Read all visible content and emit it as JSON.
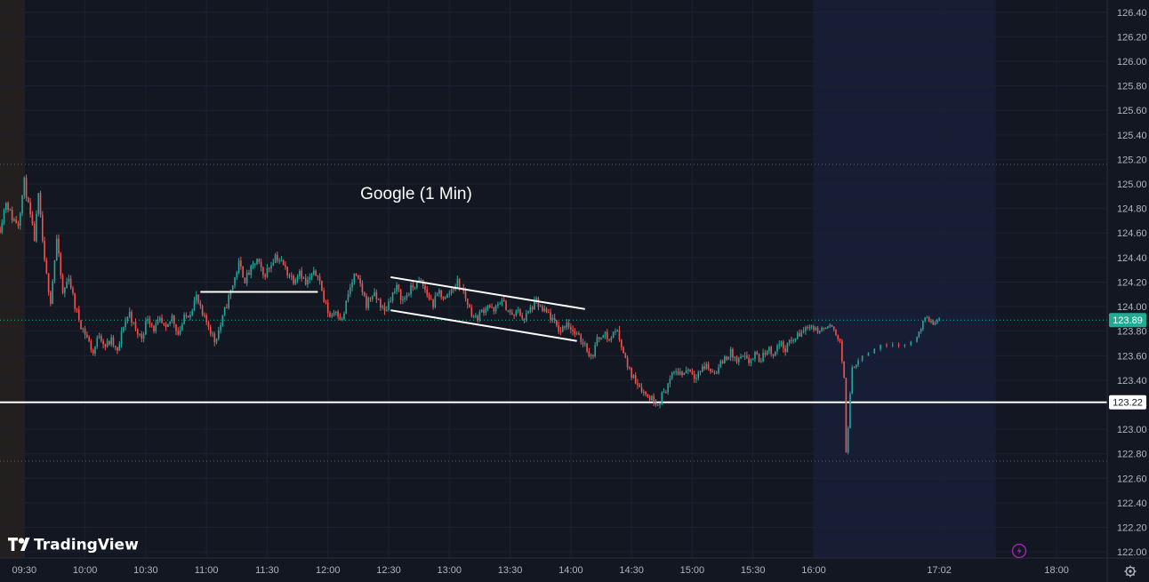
{
  "brand": {
    "name": "TradingView",
    "logo_icon": "tradingview-logo-icon"
  },
  "colors": {
    "background": "#131722",
    "premarket_shade": "#221f1e",
    "afterhours_shade": "#161d34",
    "up": "#26a69a",
    "down": "#ef5350",
    "grid": "#1c2030",
    "axis_text": "#b2b5be",
    "price_badge": "#22ab94",
    "annotation": "#ffffff"
  },
  "scale_settings_icon": "gear-icon",
  "lightning_icon": "lightning-icon",
  "chart_data": {
    "type": "candlestick",
    "title": "Google (1 Min)",
    "y_ticks": [
      "126.40",
      "126.20",
      "126.00",
      "125.80",
      "125.60",
      "125.40",
      "125.20",
      "125.00",
      "124.80",
      "124.60",
      "124.40",
      "124.20",
      "124.00",
      "123.80",
      "123.60",
      "123.40",
      "123.20",
      "123.00",
      "122.80",
      "122.60",
      "122.40",
      "122.20",
      "122.00"
    ],
    "x_ticks": [
      "09:30",
      "10:00",
      "10:30",
      "11:00",
      "11:30",
      "12:00",
      "12:30",
      "13:00",
      "13:30",
      "14:00",
      "14:30",
      "15:00",
      "15:30",
      "16:00",
      "17:02",
      "18:00"
    ],
    "ylim": [
      121.95,
      126.5
    ],
    "x_range": [
      "09:18",
      "18:25"
    ],
    "sessions": {
      "premarket": [
        "09:18",
        "09:30"
      ],
      "afterhours": [
        "16:00",
        "17:30"
      ]
    },
    "current_price": "123.89",
    "horizontal_line_level": "123.22",
    "dotted_levels": [
      125.16,
      122.74
    ],
    "annotations": {
      "resistance_line": {
        "from": [
          "10:57",
          124.12
        ],
        "to": [
          "11:55",
          124.12
        ]
      },
      "channel_upper": {
        "from": [
          "12:31",
          124.24
        ],
        "to": [
          "14:07",
          123.98
        ]
      },
      "channel_lower": {
        "from": [
          "12:31",
          123.97
        ],
        "to": [
          "14:03",
          123.72
        ]
      }
    },
    "price_path": [
      [
        "09:18",
        124.64
      ],
      [
        "09:21",
        124.86
      ],
      [
        "09:24",
        124.72
      ],
      [
        "09:27",
        124.68
      ],
      [
        "09:30",
        125.02
      ],
      [
        "09:32",
        124.82
      ],
      [
        "09:35",
        124.55
      ],
      [
        "09:37",
        124.9
      ],
      [
        "09:40",
        124.35
      ],
      [
        "09:43",
        124.05
      ],
      [
        "09:46",
        124.55
      ],
      [
        "09:49",
        124.1
      ],
      [
        "09:52",
        124.25
      ],
      [
        "09:55",
        124.0
      ],
      [
        "09:58",
        123.85
      ],
      [
        "10:01",
        123.75
      ],
      [
        "10:04",
        123.62
      ],
      [
        "10:07",
        123.78
      ],
      [
        "10:10",
        123.68
      ],
      [
        "10:13",
        123.72
      ],
      [
        "10:16",
        123.62
      ],
      [
        "10:19",
        123.85
      ],
      [
        "10:22",
        123.95
      ],
      [
        "10:25",
        123.8
      ],
      [
        "10:28",
        123.75
      ],
      [
        "10:31",
        123.92
      ],
      [
        "10:34",
        123.82
      ],
      [
        "10:37",
        123.88
      ],
      [
        "10:40",
        123.8
      ],
      [
        "10:43",
        123.92
      ],
      [
        "10:46",
        123.78
      ],
      [
        "10:49",
        123.9
      ],
      [
        "10:52",
        123.96
      ],
      [
        "10:55",
        124.08
      ],
      [
        "10:58",
        123.92
      ],
      [
        "11:01",
        123.85
      ],
      [
        "11:04",
        123.72
      ],
      [
        "11:07",
        123.85
      ],
      [
        "11:10",
        124.02
      ],
      [
        "11:13",
        124.18
      ],
      [
        "11:16",
        124.35
      ],
      [
        "11:19",
        124.22
      ],
      [
        "11:22",
        124.3
      ],
      [
        "11:25",
        124.38
      ],
      [
        "11:28",
        124.25
      ],
      [
        "11:31",
        124.32
      ],
      [
        "11:34",
        124.42
      ],
      [
        "11:37",
        124.36
      ],
      [
        "11:40",
        124.28
      ],
      [
        "11:43",
        124.22
      ],
      [
        "11:46",
        124.3
      ],
      [
        "11:49",
        124.18
      ],
      [
        "11:52",
        124.25
      ],
      [
        "11:55",
        124.28
      ],
      [
        "11:58",
        124.05
      ],
      [
        "12:01",
        123.92
      ],
      [
        "12:04",
        123.98
      ],
      [
        "12:07",
        123.88
      ],
      [
        "12:10",
        124.1
      ],
      [
        "12:13",
        124.25
      ],
      [
        "12:16",
        124.18
      ],
      [
        "12:19",
        124.02
      ],
      [
        "12:22",
        124.1
      ],
      [
        "12:25",
        124.05
      ],
      [
        "12:28",
        123.95
      ],
      [
        "12:31",
        124.08
      ],
      [
        "12:34",
        124.15
      ],
      [
        "12:37",
        124.05
      ],
      [
        "12:40",
        124.12
      ],
      [
        "12:43",
        124.18
      ],
      [
        "12:46",
        124.2
      ],
      [
        "12:49",
        124.1
      ],
      [
        "12:52",
        124.02
      ],
      [
        "12:55",
        124.12
      ],
      [
        "12:58",
        124.06
      ],
      [
        "13:01",
        124.14
      ],
      [
        "13:04",
        124.2
      ],
      [
        "13:07",
        124.12
      ],
      [
        "13:10",
        123.98
      ],
      [
        "13:13",
        123.9
      ],
      [
        "13:16",
        123.96
      ],
      [
        "13:19",
        124.02
      ],
      [
        "13:22",
        123.95
      ],
      [
        "13:25",
        124.05
      ],
      [
        "13:28",
        124.0
      ],
      [
        "13:31",
        123.92
      ],
      [
        "13:34",
        123.96
      ],
      [
        "13:37",
        123.9
      ],
      [
        "13:40",
        123.98
      ],
      [
        "13:43",
        124.04
      ],
      [
        "13:46",
        123.96
      ],
      [
        "13:49",
        123.94
      ],
      [
        "13:52",
        123.86
      ],
      [
        "13:55",
        123.8
      ],
      [
        "13:58",
        123.88
      ],
      [
        "14:01",
        123.8
      ],
      [
        "14:04",
        123.74
      ],
      [
        "14:07",
        123.7
      ],
      [
        "14:10",
        123.58
      ],
      [
        "14:13",
        123.72
      ],
      [
        "14:16",
        123.8
      ],
      [
        "14:19",
        123.72
      ],
      [
        "14:22",
        123.82
      ],
      [
        "14:25",
        123.7
      ],
      [
        "14:28",
        123.5
      ],
      [
        "14:31",
        123.42
      ],
      [
        "14:34",
        123.36
      ],
      [
        "14:37",
        123.28
      ],
      [
        "14:40",
        123.25
      ],
      [
        "14:43",
        123.22
      ],
      [
        "14:46",
        123.3
      ],
      [
        "14:49",
        123.4
      ],
      [
        "14:52",
        123.48
      ],
      [
        "14:55",
        123.45
      ],
      [
        "14:58",
        123.5
      ],
      [
        "15:01",
        123.44
      ],
      [
        "15:04",
        123.48
      ],
      [
        "15:07",
        123.52
      ],
      [
        "15:10",
        123.46
      ],
      [
        "15:13",
        123.5
      ],
      [
        "15:16",
        123.58
      ],
      [
        "15:19",
        123.62
      ],
      [
        "15:22",
        123.55
      ],
      [
        "15:25",
        123.58
      ],
      [
        "15:28",
        123.55
      ],
      [
        "15:31",
        123.6
      ],
      [
        "15:34",
        123.56
      ],
      [
        "15:37",
        123.66
      ],
      [
        "15:40",
        123.62
      ],
      [
        "15:43",
        123.7
      ],
      [
        "15:46",
        123.66
      ],
      [
        "15:49",
        123.72
      ],
      [
        "15:52",
        123.76
      ],
      [
        "15:55",
        123.8
      ],
      [
        "15:58",
        123.86
      ],
      [
        "16:00",
        123.82
      ],
      [
        "16:02",
        123.8
      ],
      [
        "16:05",
        123.82
      ],
      [
        "16:08",
        123.84
      ],
      [
        "16:10",
        123.8
      ],
      [
        "16:13",
        123.72
      ],
      [
        "16:15",
        123.4
      ],
      [
        "16:16",
        122.82
      ],
      [
        "16:17",
        123.0
      ],
      [
        "16:18",
        123.3
      ],
      [
        "16:19",
        123.5
      ],
      [
        "16:21",
        123.54
      ],
      [
        "16:25",
        123.62
      ],
      [
        "16:30",
        123.66
      ],
      [
        "16:35",
        123.68
      ],
      [
        "16:40",
        123.7
      ],
      [
        "16:45",
        123.7
      ],
      [
        "16:50",
        123.72
      ],
      [
        "16:55",
        123.9
      ],
      [
        "17:00",
        123.86
      ],
      [
        "17:02",
        123.91
      ]
    ]
  }
}
